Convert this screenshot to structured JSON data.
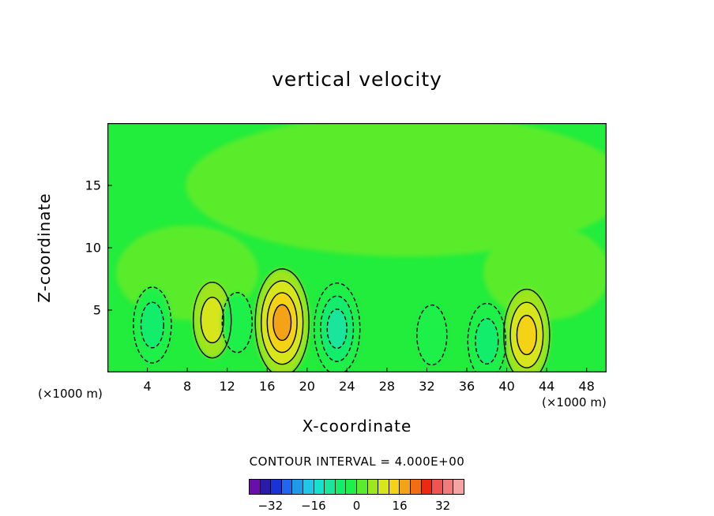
{
  "chart_data": {
    "type": "heatmap",
    "title": "vertical velocity",
    "xlabel": "X-coordinate",
    "ylabel": "Z-coordinate",
    "x_unit": "(×1000 m)",
    "xlim": [
      0,
      50
    ],
    "ylim": [
      0,
      20
    ],
    "x_ticks": [
      4,
      8,
      12,
      16,
      20,
      24,
      28,
      32,
      36,
      40,
      44,
      48
    ],
    "y_ticks": [
      5,
      10,
      15
    ],
    "contour_interval_text": "CONTOUR INTERVAL = 4.000E+00",
    "colorbar": {
      "colors": [
        "#6a0dad",
        "#2a1aa8",
        "#1a33d6",
        "#1f66f0",
        "#1e9ae8",
        "#22c6e6",
        "#18e0cf",
        "#19e69c",
        "#12ee6c",
        "#1ef04a",
        "#5aec2c",
        "#9ee51e",
        "#d6e61a",
        "#f4d216",
        "#f4a316",
        "#f26d14",
        "#ec2a14",
        "#f25252",
        "#f27a7a",
        "#f5a3a3"
      ],
      "tick_labels": [
        "-32",
        "-16",
        "0",
        "16",
        "32"
      ],
      "tick_values": [
        -32,
        -16,
        0,
        16,
        32
      ],
      "range": [
        -40,
        40
      ]
    },
    "features": [
      {
        "x": 17.5,
        "z": 4.0,
        "value": 16,
        "kind": "updraft"
      },
      {
        "x": 42.0,
        "z": 3.0,
        "value": 12,
        "kind": "updraft"
      },
      {
        "x": 10.5,
        "z": 4.2,
        "value": 8,
        "kind": "updraft"
      },
      {
        "x": 4.5,
        "z": 3.8,
        "value": -8,
        "kind": "downdraft"
      },
      {
        "x": 23.0,
        "z": 3.5,
        "value": -12,
        "kind": "downdraft"
      },
      {
        "x": 38.0,
        "z": 2.5,
        "value": -8,
        "kind": "downdraft"
      },
      {
        "x": 13.0,
        "z": 4.0,
        "value": -4,
        "kind": "downdraft"
      },
      {
        "x": 32.5,
        "z": 3.0,
        "value": -4,
        "kind": "downdraft"
      }
    ]
  }
}
